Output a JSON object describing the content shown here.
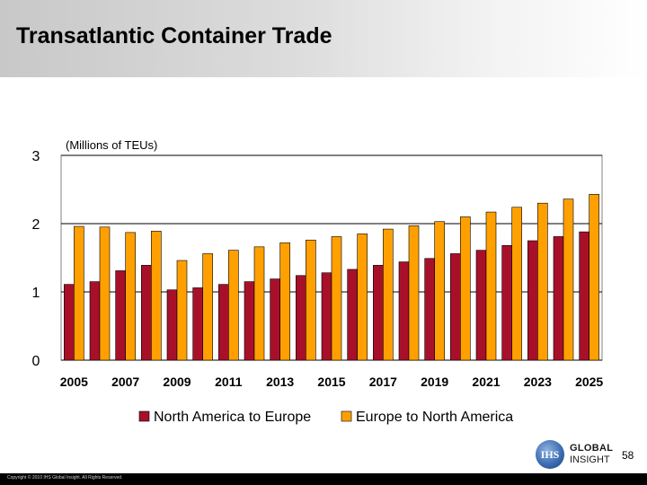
{
  "slide": {
    "title": "Transatlantic Container Trade",
    "page_number": "58",
    "copyright": "Copyright © 2010 IHS Global Insight. All Rights Reserved.",
    "logo": {
      "mark": "IHS",
      "line1": "GLOBAL",
      "line2": "INSIGHT"
    }
  },
  "colors": {
    "series_1": "#a8102a",
    "series_2": "#ffa000",
    "grid": "#000000",
    "plot_border": "#808080"
  },
  "chart_data": {
    "type": "bar",
    "unit_label": "(Millions of TEUs)",
    "ylim": [
      0,
      3
    ],
    "yticks": [
      "0",
      "1",
      "2",
      "3"
    ],
    "grid": true,
    "legend_position": "bottom",
    "categories": [
      "2005",
      "2006",
      "2007",
      "2008",
      "2009",
      "2010",
      "2011",
      "2012",
      "2013",
      "2014",
      "2015",
      "2016",
      "2017",
      "2018",
      "2019",
      "2020",
      "2021",
      "2022",
      "2023",
      "2024",
      "2025"
    ],
    "xtick_labels": [
      "2005",
      "",
      "2007",
      "",
      "2009",
      "",
      "2011",
      "",
      "2013",
      "",
      "2015",
      "",
      "2017",
      "",
      "2019",
      "",
      "2021",
      "",
      "2023",
      "",
      "2025"
    ],
    "series": [
      {
        "name": "North America to Europe",
        "values": [
          1.11,
          1.15,
          1.31,
          1.39,
          1.03,
          1.06,
          1.11,
          1.15,
          1.19,
          1.24,
          1.28,
          1.33,
          1.39,
          1.44,
          1.49,
          1.56,
          1.61,
          1.68,
          1.75,
          1.81,
          1.88
        ]
      },
      {
        "name": "Europe to North America",
        "values": [
          1.96,
          1.95,
          1.87,
          1.89,
          1.46,
          1.56,
          1.61,
          1.66,
          1.72,
          1.76,
          1.81,
          1.85,
          1.92,
          1.97,
          2.03,
          2.1,
          2.17,
          2.24,
          2.3,
          2.36,
          2.43
        ]
      }
    ]
  }
}
